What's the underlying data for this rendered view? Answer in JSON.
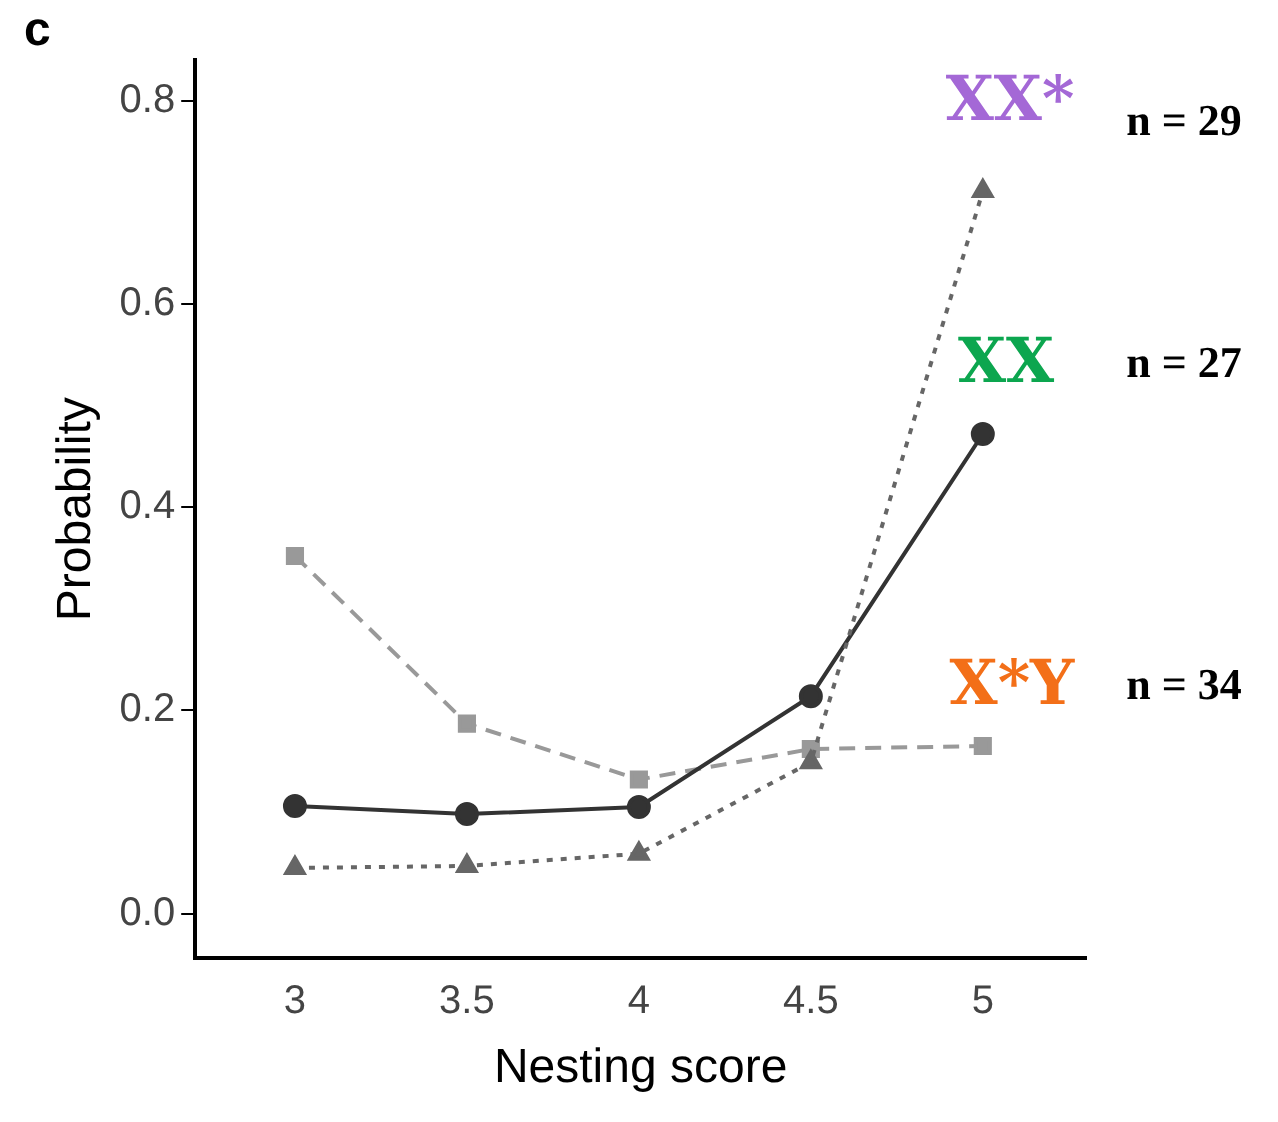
{
  "chart_data": {
    "type": "line",
    "xlabel": "Nesting score",
    "ylabel": "Probability",
    "x": [
      3,
      3.5,
      4,
      4.5,
      5
    ],
    "xlim": [
      2.71,
      5.3
    ],
    "xticks": [
      3,
      3.5,
      4,
      4.5,
      5
    ],
    "ylim": [
      -0.044,
      0.84
    ],
    "yticks": [
      {
        "value": 0,
        "label": "0.0"
      },
      {
        "value": 0.2,
        "label": "0.2"
      },
      {
        "value": 0.4,
        "label": "0.4"
      },
      {
        "value": 0.6,
        "label": "0.6"
      },
      {
        "value": 0.8,
        "label": "0.8"
      }
    ],
    "grid": false,
    "legend": false,
    "series": [
      {
        "name": "XX*",
        "color": "#666666",
        "marker": "triangle",
        "line_style": "dotted",
        "values": [
          0.045,
          0.047,
          0.059,
          0.149,
          0.711
        ]
      },
      {
        "name": "XX",
        "color": "#333333",
        "marker": "circle",
        "line_style": "solid",
        "values": [
          0.106,
          0.098,
          0.105,
          0.214,
          0.472
        ]
      },
      {
        "name": "X*Y",
        "color": "#999999",
        "marker": "square",
        "line_style": "dashed",
        "values": [
          0.352,
          0.187,
          0.132,
          0.162,
          0.165
        ]
      }
    ],
    "annotations": [
      "c",
      "n = 29",
      "n = 27",
      "n = 34"
    ]
  }
}
